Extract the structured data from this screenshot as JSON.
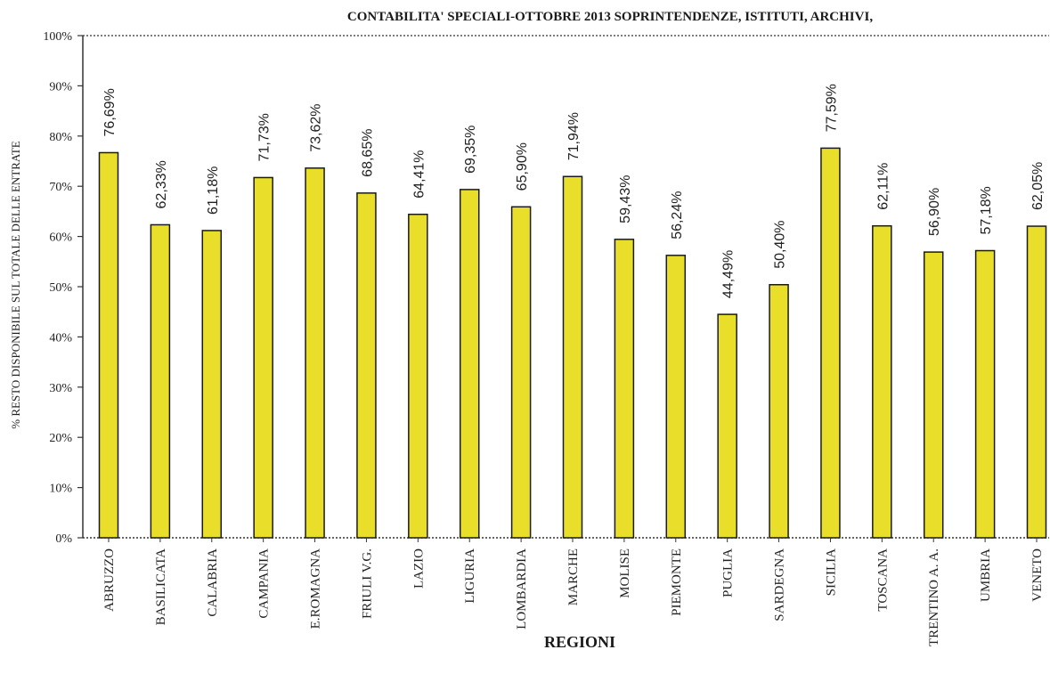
{
  "chart_data": {
    "type": "bar",
    "title": "CONTABILITA' SPECIALI-OTTOBRE 2013 SOPRINTENDENZE, ISTITUTI, ARCHIVI,",
    "xlabel": "REGIONI",
    "ylabel": "% RESTO DISPONIBILE SUL TOTALE DELLE ENTRATE",
    "ylim": [
      0,
      100
    ],
    "yticks": [
      "0%",
      "10%",
      "20%",
      "30%",
      "40%",
      "50%",
      "60%",
      "70%",
      "80%",
      "90%",
      "100%"
    ],
    "categories": [
      "ABRUZZO",
      "BASILICATA",
      "CALABRIA",
      "CAMPANIA",
      "E.ROMAGNA",
      "FRIULI V.G.",
      "LAZIO",
      "LIGURIA",
      "LOMBARDIA",
      "MARCHE",
      "MOLISE",
      "PIEMONTE",
      "PUGLIA",
      "SARDEGNA",
      "SICILIA",
      "TOSCANA",
      "TRENTINO A. A.",
      "UMBRIA",
      "VENETO"
    ],
    "values": [
      76.69,
      62.33,
      61.18,
      71.73,
      73.62,
      68.65,
      64.41,
      69.35,
      65.9,
      71.94,
      59.43,
      56.24,
      44.49,
      50.4,
      77.59,
      62.11,
      56.9,
      57.18,
      62.05
    ],
    "data_labels": [
      "76,69%",
      "62,33%",
      "61,18%",
      "71,73%",
      "73,62%",
      "68,65%",
      "64,41%",
      "69,35%",
      "65,90%",
      "71,94%",
      "59,43%",
      "56,24%",
      "44,49%",
      "50,40%",
      "77,59%",
      "62,11%",
      "56,90%",
      "57,18%",
      "62,05%"
    ],
    "colors": {
      "bar": "#e9df2a",
      "bar_border": "#1a1a1a"
    },
    "grid": false,
    "legend": "none"
  }
}
